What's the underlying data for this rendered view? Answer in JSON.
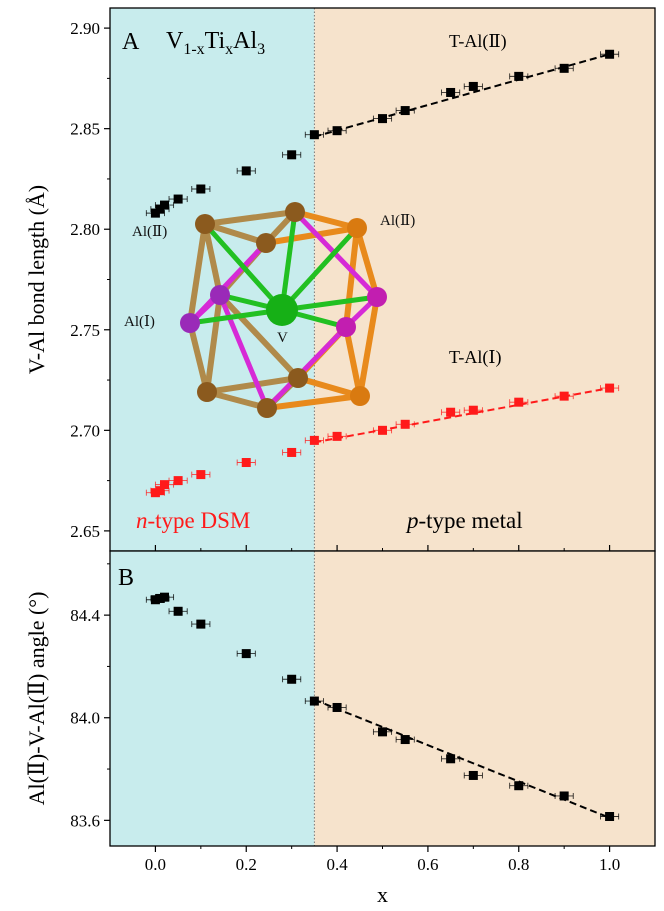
{
  "colors": {
    "n_region": "#c8eced",
    "p_region": "#f6e3cc",
    "series_black": "#000000",
    "series_red": "#ff1a1a",
    "region_label_red": "#ff1a1a",
    "bond_brown": "#b08a4a",
    "bond_orange": "#e88a1c",
    "bond_magenta": "#d62ad6",
    "bond_green": "#22c022",
    "atom_brown": "#8b5a1e",
    "atom_orange": "#d97a10",
    "atom_purple": "#9a2ab8",
    "atom_magenta": "#c21eb0",
    "atom_green": "#16b016"
  },
  "annotations": {
    "panel_a": "A",
    "panel_b": "B",
    "formula_v": "V",
    "formula_sub1": "1-x",
    "formula_ti": "Ti",
    "formula_sub2": "x",
    "formula_al": "Al",
    "formula_sub3": "3",
    "t_al2": "T-Al(Ⅱ)",
    "t_al1": "T-Al(Ⅰ)",
    "n_type_italic": "n",
    "n_type_rest": "-type DSM",
    "p_type_italic": "p",
    "p_type_rest": "-type metal",
    "struct_al2_left": "Al(Ⅱ)",
    "struct_al2_right": "Al(Ⅱ)",
    "struct_al1": "Al(Ⅰ)",
    "struct_v": "V"
  },
  "chart_data": [
    {
      "type": "scatter",
      "panel": "A",
      "xlabel": "x",
      "ylabel": "V-Al bond length (Å)",
      "xlim": [
        -0.1,
        1.1
      ],
      "ylim": [
        2.64,
        2.91
      ],
      "xticks": [
        0.0,
        0.2,
        0.4,
        0.6,
        0.8,
        1.0
      ],
      "xtick_labels": [
        "0.0",
        "0.2",
        "0.4",
        "0.6",
        "0.8",
        "1.0"
      ],
      "yticks": [
        2.65,
        2.7,
        2.75,
        2.8,
        2.85,
        2.9
      ],
      "ytick_labels": [
        "2.65",
        "2.70",
        "2.75",
        "2.80",
        "2.85",
        "2.90"
      ],
      "boundary_x": 0.35,
      "series": [
        {
          "name": "T-Al(Ⅱ)",
          "color": "#000000",
          "x": [
            0.0,
            0.01,
            0.02,
            0.05,
            0.1,
            0.2,
            0.3,
            0.35,
            0.4,
            0.5,
            0.55,
            0.65,
            0.7,
            0.8,
            0.9,
            1.0
          ],
          "y": [
            2.808,
            2.81,
            2.812,
            2.815,
            2.82,
            2.829,
            2.837,
            2.847,
            2.849,
            2.855,
            2.859,
            2.868,
            2.871,
            2.876,
            2.88,
            2.887
          ],
          "xerr": 0.02,
          "fit": {
            "x": [
              0.35,
              1.0
            ],
            "y": [
              2.846,
              2.887
            ]
          }
        },
        {
          "name": "T-Al(Ⅰ)",
          "color": "#ff1a1a",
          "x": [
            0.0,
            0.01,
            0.02,
            0.05,
            0.1,
            0.2,
            0.3,
            0.35,
            0.4,
            0.5,
            0.55,
            0.65,
            0.7,
            0.8,
            0.9,
            1.0
          ],
          "y": [
            2.669,
            2.67,
            2.673,
            2.675,
            2.678,
            2.684,
            2.689,
            2.695,
            2.697,
            2.7,
            2.703,
            2.709,
            2.71,
            2.714,
            2.717,
            2.721
          ],
          "xerr": 0.02,
          "fit": {
            "x": [
              0.35,
              1.0
            ],
            "y": [
              2.694,
              2.721
            ]
          }
        }
      ]
    },
    {
      "type": "scatter",
      "panel": "B",
      "xlabel": "x",
      "ylabel": "Al(Ⅱ)-V-Al(Ⅱ) angle (°)",
      "xlim": [
        -0.1,
        1.1
      ],
      "ylim": [
        83.5,
        84.65
      ],
      "xticks": [
        0.0,
        0.2,
        0.4,
        0.6,
        0.8,
        1.0
      ],
      "xtick_labels": [
        "0.0",
        "0.2",
        "0.4",
        "0.6",
        "0.8",
        "1.0"
      ],
      "yticks": [
        83.6,
        84.0,
        84.4
      ],
      "ytick_labels": [
        "83.6",
        "84.0",
        "84.4"
      ],
      "boundary_x": 0.35,
      "series": [
        {
          "name": "angle",
          "color": "#000000",
          "x": [
            0.0,
            0.01,
            0.02,
            0.05,
            0.1,
            0.2,
            0.3,
            0.35,
            0.4,
            0.5,
            0.55,
            0.65,
            0.7,
            0.8,
            0.9,
            1.0
          ],
          "y": [
            84.46,
            84.465,
            84.47,
            84.415,
            84.365,
            84.25,
            84.15,
            84.065,
            84.04,
            83.945,
            83.915,
            83.84,
            83.775,
            83.735,
            83.695,
            83.615
          ],
          "xerr": 0.02,
          "fit": {
            "x": [
              0.35,
              1.0
            ],
            "y": [
              84.07,
              83.61
            ]
          }
        }
      ]
    }
  ]
}
